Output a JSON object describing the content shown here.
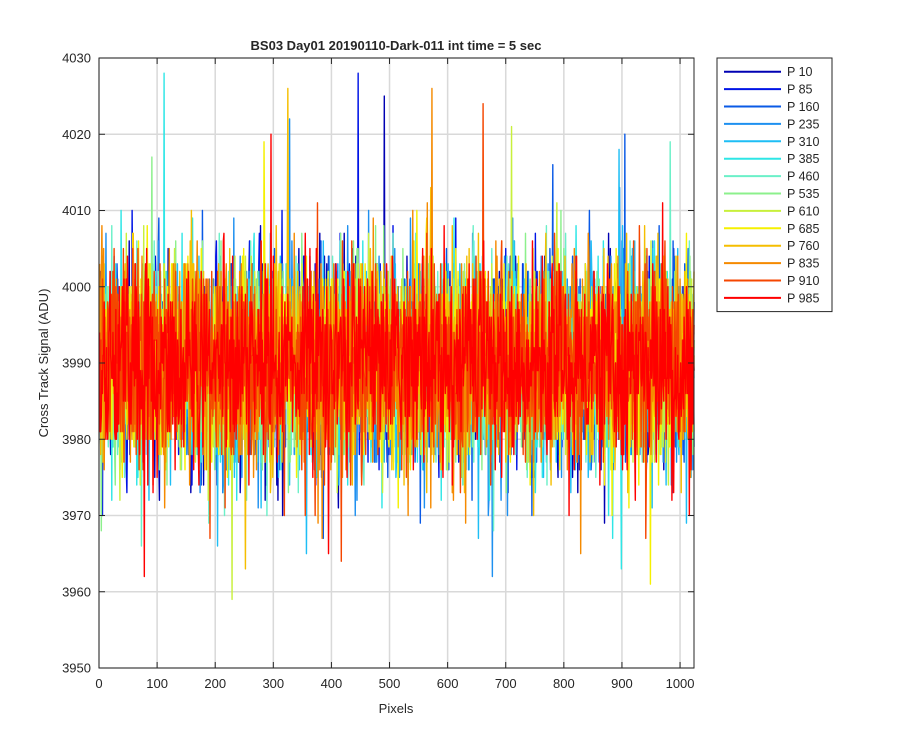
{
  "chart_data": {
    "type": "line",
    "title": "BS03 Day01 20190110-Dark-011 int time = 5 sec",
    "xlabel": "Pixels",
    "ylabel": "Cross Track Signal (ADU)",
    "xlim": [
      0,
      1024
    ],
    "ylim": [
      3950,
      4030
    ],
    "xticks": [
      0,
      100,
      200,
      300,
      400,
      500,
      600,
      700,
      800,
      900,
      1000
    ],
    "yticks": [
      3950,
      3960,
      3970,
      3980,
      3990,
      4000,
      4010,
      4020,
      4030
    ],
    "grid": true,
    "legend_position": "outside-top-right",
    "noise_model": {
      "mean": 3990,
      "std": 6.5,
      "points_per_series": 1024
    },
    "series": [
      {
        "name": "P 10",
        "color": "#0000b3",
        "min": 3969,
        "max": 4025
      },
      {
        "name": "P 85",
        "color": "#0014e6",
        "min": 3970,
        "max": 4028
      },
      {
        "name": "P 160",
        "color": "#0a5ae6",
        "min": 3967,
        "max": 4020
      },
      {
        "name": "P 235",
        "color": "#1e90f0",
        "min": 3962,
        "max": 4022
      },
      {
        "name": "P 310",
        "color": "#1ebef5",
        "min": 3965,
        "max": 4018
      },
      {
        "name": "P 385",
        "color": "#2ee6e6",
        "min": 3963,
        "max": 4028
      },
      {
        "name": "P 460",
        "color": "#6bf0c8",
        "min": 3966,
        "max": 4019
      },
      {
        "name": "P 535",
        "color": "#8cf08c",
        "min": 3968,
        "max": 4017
      },
      {
        "name": "P 610",
        "color": "#c8f03c",
        "min": 3959,
        "max": 4021
      },
      {
        "name": "P 685",
        "color": "#f5f000",
        "min": 3961,
        "max": 4019
      },
      {
        "name": "P 760",
        "color": "#f5be00",
        "min": 3963,
        "max": 4026
      },
      {
        "name": "P 835",
        "color": "#f58a00",
        "min": 3965,
        "max": 4026
      },
      {
        "name": "P 910",
        "color": "#f54600",
        "min": 3964,
        "max": 4024
      },
      {
        "name": "P 985",
        "color": "#ff0000",
        "min": 3962,
        "max": 4020
      }
    ]
  }
}
